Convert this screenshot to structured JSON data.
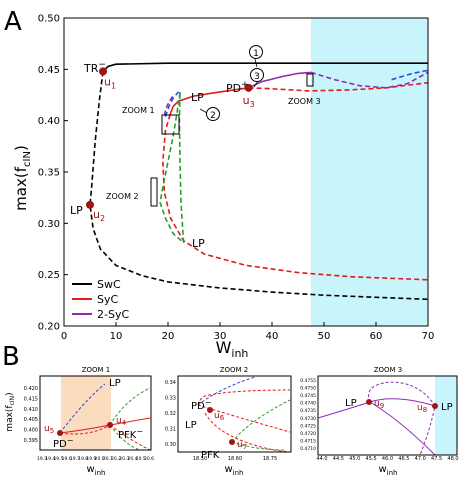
{
  "panels": {
    "A": "A",
    "B": "B"
  },
  "chart_data": [
    {
      "type": "line",
      "panel": "A",
      "xlabel": "W",
      "xlabel_sub": "inh",
      "ylabel": "max(f",
      "ylabel_sub": "cIN",
      "ylabel_close": ")",
      "xlim": [
        0,
        70
      ],
      "ylim": [
        0.2,
        0.5
      ],
      "xticks": [
        "0",
        "10",
        "20",
        "30",
        "40",
        "50",
        "60",
        "70"
      ],
      "yticks": [
        "0.20",
        "0.25",
        "0.30",
        "0.35",
        "0.40",
        "0.45",
        "0.50"
      ],
      "shaded_region": {
        "x": [
          47.5,
          70
        ],
        "color": "#c8f5fb"
      },
      "colors": {
        "SwC": "#000000",
        "SyC": "#e31a1c",
        "2-SyC": "#8e2bb3",
        "blue": "#1f4fe0",
        "green": "#2e9a2e",
        "point": "#a01515"
      },
      "series": [
        {
          "name": "SwC",
          "style": "solid",
          "color": "#000000",
          "points": [
            [
              7.5,
              0.448
            ],
            [
              8.5,
              0.453
            ],
            [
              10,
              0.455
            ],
            [
              20,
              0.456
            ],
            [
              40,
              0.456
            ],
            [
              70,
              0.456
            ]
          ]
        },
        {
          "name": "SwC",
          "style": "dashed",
          "color": "#000000",
          "points": [
            [
              7.5,
              0.448
            ],
            [
              6.8,
              0.42
            ],
            [
              6,
              0.38
            ],
            [
              5.3,
              0.335
            ],
            [
              5,
              0.318
            ],
            [
              5.6,
              0.295
            ],
            [
              7,
              0.275
            ],
            [
              10,
              0.259
            ],
            [
              15,
              0.249
            ],
            [
              20,
              0.243
            ],
            [
              30,
              0.237
            ],
            [
              40,
              0.233
            ],
            [
              50,
              0.23
            ],
            [
              60,
              0.228
            ],
            [
              70,
              0.226
            ]
          ]
        },
        {
          "name": "SyC",
          "style": "solid",
          "color": "#e31a1c",
          "points": [
            [
              20.4,
              0.406
            ],
            [
              21,
              0.414
            ],
            [
              22,
              0.419
            ],
            [
              25,
              0.424
            ],
            [
              30,
              0.428
            ],
            [
              35.5,
              0.432
            ]
          ]
        },
        {
          "name": "SyC",
          "style": "dashed",
          "color": "#e31a1c",
          "points": [
            [
              35.5,
              0.432
            ],
            [
              40,
              0.431
            ],
            [
              47,
              0.429
            ],
            [
              55,
              0.43
            ],
            [
              62,
              0.432
            ],
            [
              70,
              0.437
            ]
          ]
        },
        {
          "name": "SyC",
          "style": "dashed",
          "color": "#e31a1c",
          "points": [
            [
              20.4,
              0.406
            ],
            [
              19.5,
              0.39
            ],
            [
              19,
              0.36
            ],
            [
              19.3,
              0.33
            ],
            [
              20.5,
              0.305
            ],
            [
              23,
              0.283
            ],
            [
              27,
              0.27
            ],
            [
              35,
              0.259
            ],
            [
              45,
              0.252
            ],
            [
              55,
              0.248
            ],
            [
              70,
              0.245
            ]
          ]
        },
        {
          "name": "2-SyC",
          "style": "solid",
          "color": "#8e2bb3",
          "points": [
            [
              35.5,
              0.432
            ],
            [
              38,
              0.438
            ],
            [
              42,
              0.443
            ],
            [
              45,
              0.446
            ],
            [
              47.5,
              0.447
            ]
          ]
        },
        {
          "name": "2-SyC",
          "style": "dashed",
          "color": "#8e2bb3",
          "points": [
            [
              47.5,
              0.447
            ],
            [
              52,
              0.44
            ],
            [
              57,
              0.434
            ],
            [
              62,
              0.432
            ],
            [
              66,
              0.436
            ],
            [
              70,
              0.447
            ]
          ]
        },
        {
          "name": "2-SyC",
          "style": "dashed",
          "color": "#8e2bb3",
          "points": [
            [
              19.3,
              0.405
            ],
            [
              19.6,
              0.412
            ],
            [
              20.4,
              0.42
            ],
            [
              21.2,
              0.426
            ]
          ]
        },
        {
          "name": "",
          "style": "dashed",
          "color": "#1f4fe0",
          "points": [
            [
              19.5,
              0.404
            ],
            [
              20.2,
              0.414
            ],
            [
              21,
              0.422
            ],
            [
              22,
              0.428
            ]
          ]
        },
        {
          "name": "",
          "style": "dashed",
          "color": "#1f4fe0",
          "points": [
            [
              63,
              0.44
            ],
            [
              65,
              0.443
            ],
            [
              67,
              0.446
            ],
            [
              70,
              0.449
            ]
          ]
        },
        {
          "name": "",
          "style": "dashed",
          "color": "#2e9a2e",
          "points": [
            [
              22.3,
              0.428
            ],
            [
              21.8,
              0.41
            ],
            [
              21,
              0.385
            ],
            [
              20,
              0.36
            ],
            [
              18.8,
              0.33
            ],
            [
              18.5,
              0.32
            ],
            [
              19.5,
              0.305
            ],
            [
              21,
              0.29
            ],
            [
              23,
              0.281
            ]
          ]
        },
        {
          "name": "",
          "style": "dashed",
          "color": "#2e9a2e",
          "points": [
            [
              23,
              0.281
            ],
            [
              22.5,
              0.32
            ],
            [
              22.3,
              0.36
            ],
            [
              22.2,
              0.4
            ],
            [
              22.3,
              0.428
            ]
          ]
        }
      ],
      "points": [
        {
          "label": "u",
          "sub": "1",
          "x": 7.5,
          "y": 0.448,
          "tag": "TR"
        },
        {
          "label": "u",
          "sub": "2",
          "x": 5,
          "y": 0.318,
          "tag": "LP"
        },
        {
          "label": "u",
          "sub": "3",
          "x": 35.5,
          "y": 0.432,
          "tag": "PD"
        }
      ],
      "annotations": {
        "TR": "TR",
        "TR_sup": "−",
        "LP_left": "LP",
        "LP_top": "LP",
        "LP_bottom": "LP",
        "PD": "PD",
        "PD_sup": "+",
        "zoom1": "ZOOM 1",
        "zoom2": "ZOOM 2",
        "zoom3": "ZOOM 3",
        "circle1": "1",
        "circle2": "2",
        "circle3": "3"
      },
      "legend": {
        "position": "bottom-left",
        "entries": [
          "SwC",
          "SyC",
          "2-SyC"
        ]
      }
    },
    {
      "type": "line",
      "panel": "B",
      "title": "ZOOM 1",
      "xlabel": "w",
      "xlabel_sub": "inh",
      "ylabel": "max(f",
      "ylabel_sub": "cIN",
      "ylabel_close": ")",
      "xlim": [
        19.25,
        20.65
      ],
      "ylim": [
        0.3925,
        0.4225
      ],
      "xticks": [
        "19.3",
        "19.4",
        "19.5",
        "19.6",
        "19.7",
        "19.8",
        "19.9",
        "20.0",
        "20.1",
        "20.2",
        "20.3",
        "20.4",
        "20.5",
        "20.6"
      ],
      "yticks": [
        "0.395",
        "0.400",
        "0.405",
        "0.410",
        "0.415",
        "0.420"
      ],
      "shaded_region": {
        "x": [
          19.41,
          20.15
        ],
        "color": "#fbdcbf"
      },
      "points": [
        {
          "label": "u",
          "sub": "5",
          "x": 19.41,
          "y": 0.4075,
          "tag": "PD"
        },
        {
          "label": "u",
          "sub": "4",
          "x": 20.15,
          "y": 0.4083,
          "tag": "PFK"
        }
      ],
      "annotations": {
        "LP": "LP",
        "PD": "PD",
        "PD_sup": "−",
        "PFK": "PFK",
        "PFK_sup": "−"
      }
    },
    {
      "type": "line",
      "panel": "B",
      "title": "ZOOM 2",
      "xticks": [
        "18.50",
        "18.60",
        "18.75"
      ],
      "yticks": [
        "0.34",
        "0.33",
        "0.32",
        "0.31",
        "0.30"
      ],
      "xlabel": "w",
      "xlabel_sub": "inh",
      "points": [
        {
          "label": "u",
          "sub": "6",
          "x": 18.58,
          "y": 0.324,
          "tag": "PD"
        },
        {
          "label": "u",
          "sub": "7",
          "x": 18.62,
          "y": 0.305,
          "tag": "PFK"
        }
      ],
      "annotations": {
        "PD": "PD",
        "PD_sup": "−",
        "LP": "LP",
        "PFK": "PFK"
      }
    },
    {
      "type": "line",
      "panel": "B",
      "title": "ZOOM 3",
      "xlim": [
        43.8,
        48.0
      ],
      "ylim": [
        0.4705,
        0.4755
      ],
      "xticks": [
        "44.0",
        "44.5",
        "45.0",
        "45.5",
        "46.0",
        "46.5",
        "47.0",
        "47.5",
        "48.0"
      ],
      "yticks": [
        "0.4755",
        "0.4750",
        "0.4745",
        "0.4740",
        "0.4735",
        "0.4730",
        "0.4725",
        "0.4720",
        "0.4715",
        "0.4710"
      ],
      "shaded_region": {
        "x": [
          47.1,
          48.0
        ],
        "color": "#c8f5fb"
      },
      "xlabel": "w",
      "xlabel_sub": "inh",
      "points": [
        {
          "label": "u",
          "sub": "9",
          "x": 45.0,
          "y": 0.4748,
          "tag": "LP"
        },
        {
          "label": "u",
          "sub": "8",
          "x": 47.1,
          "y": 0.4745,
          "tag": "LP"
        }
      ],
      "annotations": {
        "LP_left": "LP",
        "LP_right": "LP"
      }
    }
  ]
}
